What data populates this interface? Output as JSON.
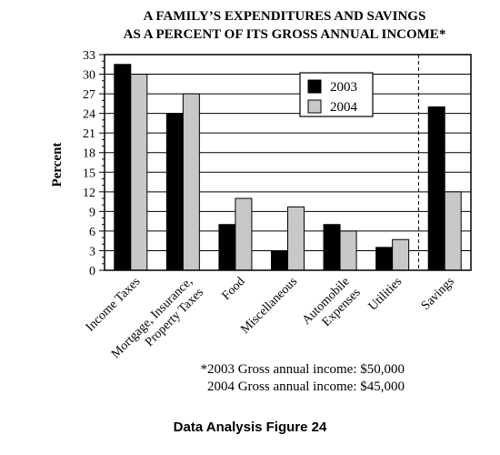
{
  "chart_data": {
    "type": "bar",
    "title": [
      "A FAMILY’S EXPENDITURES AND SAVINGS",
      "AS A PERCENT OF ITS GROSS ANNUAL INCOME*"
    ],
    "ylabel": "Percent",
    "xlabel": "",
    "ylim": [
      0,
      33
    ],
    "yticks": [
      0,
      3,
      6,
      9,
      12,
      15,
      18,
      21,
      24,
      27,
      30,
      33
    ],
    "grid": "horizontal",
    "legend_position": "top-right",
    "categories": [
      [
        "Income Taxes"
      ],
      [
        "Mortgage, Insurance,",
        "Property Taxes"
      ],
      [
        "Food"
      ],
      [
        "Miscellaneous"
      ],
      [
        "Automobile",
        "Expenses"
      ],
      [
        "Utilities"
      ],
      [
        "Savings"
      ]
    ],
    "series": [
      {
        "name": "2003",
        "color": "#000000",
        "values": [
          31.5,
          24,
          7,
          3,
          7,
          3.5,
          25
        ]
      },
      {
        "name": "2004",
        "color": "#c8c8c8",
        "values": [
          30,
          27,
          11,
          9.7,
          6,
          4.7,
          12
        ]
      }
    ],
    "separator_before_category": 6
  },
  "footnotes": [
    "*2003 Gross annual income:  $50,000",
    "2004 Gross annual income:  $45,000"
  ],
  "caption": "Data Analysis Figure 24"
}
